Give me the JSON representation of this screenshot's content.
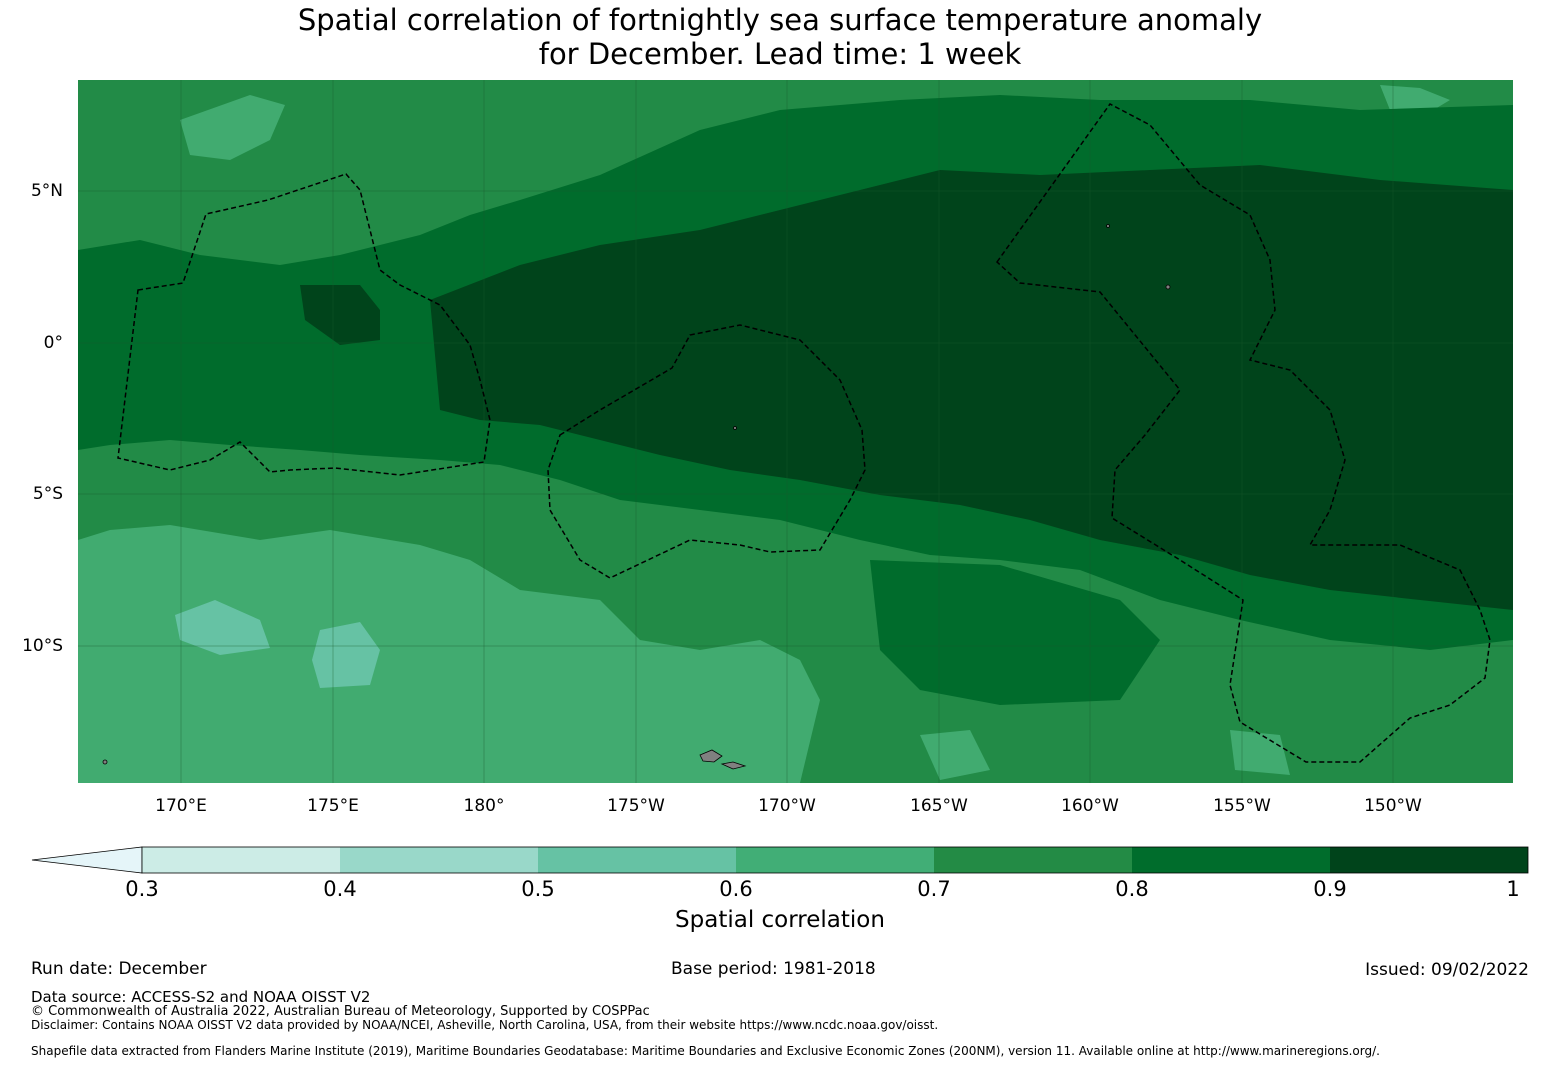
{
  "title": {
    "line1": "Spatial correlation of fortnightly sea surface temperature anomaly",
    "line2": "for December. Lead time: 1 week"
  },
  "map": {
    "lat_labels": [
      "5°N",
      "0°",
      "5°S",
      "10°S"
    ],
    "lon_labels": [
      "170°E",
      "175°E",
      "180°",
      "175°W",
      "170°W",
      "165°W",
      "160°W",
      "155°W",
      "150°W"
    ],
    "colors": {
      "c07": "#228b47",
      "c08": "#006c2c",
      "c09": "#00441b",
      "c06": "#41ab70",
      "c05": "#66c2a4",
      "land": "#808080"
    }
  },
  "colorbar": {
    "label": "Spatial correlation",
    "ticks": [
      "0.3",
      "0.4",
      "0.5",
      "0.6",
      "0.7",
      "0.8",
      "0.9",
      "1"
    ],
    "colors": [
      "#e5f5f9",
      "#ccece6",
      "#99d8c9",
      "#66c2a4",
      "#41ae76",
      "#238b45",
      "#006d2c",
      "#00441b"
    ]
  },
  "footer": {
    "run_date": "Run date: December",
    "base_period": "Base period: 1981-2018",
    "issued": "Issued: 09/02/2022",
    "data_source": "Data source: ACCESS-S2 and NOAA OISST V2",
    "copyright": "© Commonwealth of Australia 2022, Australian Bureau of Meteorology, Supported by COSPPac",
    "disclaimer": "Disclaimer: Contains NOAA OISST V2 data provided by NOAA/NCEI, Asheville, North Carolina, USA, from their website https://www.ncdc.noaa.gov/oisst.",
    "shapefile": "Shapefile data extracted from Flanders Marine Institute (2019), Maritime Boundaries Geodatabase: Maritime Boundaries and Exclusive Economic Zones (200NM), version 11. Available online at http://www.marineregions.org/."
  }
}
